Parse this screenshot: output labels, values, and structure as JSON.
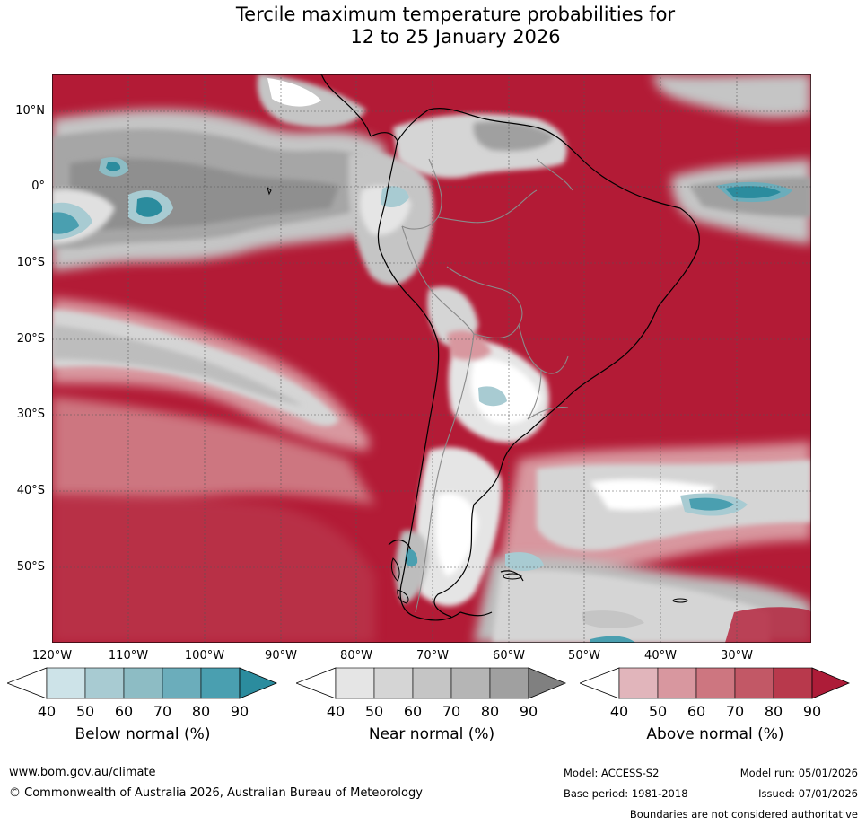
{
  "title": {
    "line1": "Tercile maximum temperature probabilities for",
    "line2": "12 to 25 January 2026"
  },
  "map": {
    "lat_labels": [
      "10°N",
      "0°",
      "10°S",
      "20°S",
      "30°S",
      "40°S",
      "50°S"
    ],
    "lon_labels": [
      "120°W",
      "110°W",
      "100°W",
      "90°W",
      "80°W",
      "70°W",
      "60°W",
      "50°W",
      "40°W",
      "30°W"
    ],
    "colors": {
      "above_dominant": "#b31b36",
      "ocean_grey": "#bdbdbd",
      "land_outline": "#000000",
      "border": "#8a8a8a"
    }
  },
  "colorbars": [
    {
      "name": "Below normal (%)",
      "ticks": [
        "40",
        "50",
        "60",
        "70",
        "80",
        "90"
      ],
      "colors": [
        "#ffffff",
        "#cde3e8",
        "#a8cbd2",
        "#8dbcc4",
        "#6badbb",
        "#4a9fb0",
        "#2b8c9e"
      ]
    },
    {
      "name": "Near normal (%)",
      "ticks": [
        "40",
        "50",
        "60",
        "70",
        "80",
        "90"
      ],
      "colors": [
        "#ffffff",
        "#e5e5e5",
        "#d5d5d5",
        "#c5c5c5",
        "#b5b5b5",
        "#a0a0a0",
        "#808080"
      ]
    },
    {
      "name": "Above normal (%)",
      "ticks": [
        "40",
        "50",
        "60",
        "70",
        "80",
        "90"
      ],
      "colors": [
        "#ffffff",
        "#e1b5bb",
        "#d8979f",
        "#cd7680",
        "#c25866",
        "#b8394c",
        "#ad1c38"
      ]
    }
  ],
  "footer": {
    "website": "www.bom.gov.au/climate",
    "copyright": "© Commonwealth of Australia 2026, Australian Bureau of Meteorology",
    "model": "Model: ACCESS-S2",
    "model_run": "Model run: 05/01/2026",
    "base_period": "Base period: 1981-2018",
    "issued": "Issued: 07/01/2026",
    "disclaimer": "Boundaries are not considered authoritative"
  }
}
